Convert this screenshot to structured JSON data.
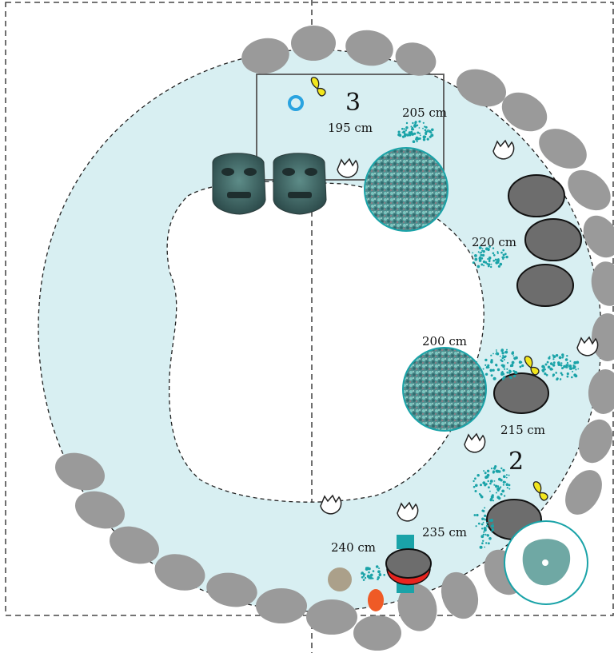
{
  "zones": {
    "zone_3": "3",
    "zone_2": "2"
  },
  "depth_labels": {
    "d195": "195 cm",
    "d205": "205 cm",
    "d220": "220 cm",
    "d200": "200 cm",
    "d215": "215 cm",
    "d235": "235 cm",
    "d240": "240 cm"
  },
  "colors": {
    "ring_fill": "#d8eff2",
    "stone": "#9a9a9a",
    "stone_dark": "#6d6d6d",
    "turquoise_dots": "#1aa3a8",
    "marker_yellow": "#f2e61d",
    "blue_ring": "#2aa3e0",
    "red_bowl": "#e8231f",
    "orange_oval": "#ef5a26",
    "tan_disc": "#aba08a"
  },
  "icons": [
    "shell-icon",
    "butterfly-marker-icon",
    "bead-icon",
    "mask-icon",
    "mosaic-disc-icon",
    "pendant-icon"
  ]
}
